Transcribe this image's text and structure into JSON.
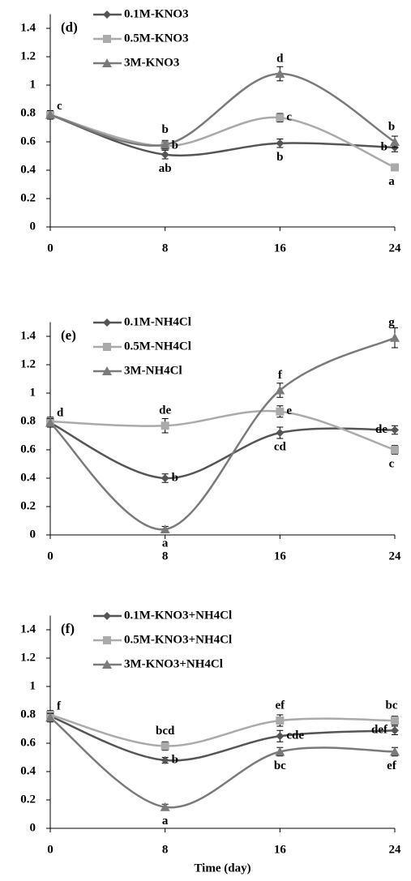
{
  "chart_data": [
    {
      "type": "line",
      "panel_label": "(d)",
      "smooth": true,
      "x": [
        0,
        8,
        16,
        24
      ],
      "xlim": [
        0,
        24
      ],
      "xticks": [
        0,
        8,
        16,
        24
      ],
      "ylim": [
        0,
        1.5
      ],
      "yticks": [
        0,
        0.2,
        0.4,
        0.6,
        0.8,
        1,
        1.2,
        1.4
      ],
      "series": [
        {
          "name": "0.1M-KNO3",
          "color": "#555555",
          "marker": "diamond",
          "values": [
            0.79,
            0.51,
            0.59,
            0.56
          ],
          "errors": [
            0.03,
            0.03,
            0.03,
            0.03
          ],
          "letters": [
            null,
            "ab",
            "b",
            "b"
          ]
        },
        {
          "name": "0.5M-KNO3",
          "color": "#aaaaaa",
          "marker": "square",
          "values": [
            0.79,
            0.57,
            0.77,
            0.42
          ],
          "errors": [
            0.03,
            0.03,
            0.03,
            0.02
          ],
          "letters": [
            null,
            "b",
            "c",
            "a"
          ]
        },
        {
          "name": "3M-KNO3",
          "color": "#7a7a7a",
          "marker": "triangle",
          "values": [
            0.79,
            0.58,
            1.08,
            0.6
          ],
          "errors": [
            0.03,
            0.03,
            0.05,
            0.04
          ],
          "letters": [
            "c",
            "b",
            "d",
            "b"
          ]
        }
      ]
    },
    {
      "type": "line",
      "panel_label": "(e)",
      "smooth": true,
      "x": [
        0,
        8,
        16,
        24
      ],
      "xlim": [
        0,
        24
      ],
      "xticks": [
        0,
        8,
        16,
        24
      ],
      "ylim": [
        0,
        1.5
      ],
      "yticks": [
        0,
        0.2,
        0.4,
        0.6,
        0.8,
        1,
        1.2,
        1.4
      ],
      "series": [
        {
          "name": "0.1M-NH4Cl",
          "color": "#555555",
          "marker": "diamond",
          "values": [
            0.79,
            0.4,
            0.72,
            0.74
          ],
          "errors": [
            0.03,
            0.03,
            0.04,
            0.03
          ],
          "letters": [
            null,
            "b",
            "cd",
            "de"
          ]
        },
        {
          "name": "0.5M-NH4Cl",
          "color": "#aaaaaa",
          "marker": "square",
          "values": [
            0.8,
            0.77,
            0.87,
            0.6
          ],
          "errors": [
            0.03,
            0.05,
            0.04,
            0.03
          ],
          "letters": [
            "d",
            "de",
            "e",
            "c"
          ]
        },
        {
          "name": "3M-NH4Cl",
          "color": "#7a7a7a",
          "marker": "triangle",
          "values": [
            0.79,
            0.04,
            1.02,
            1.39
          ],
          "errors": [
            0.03,
            0.02,
            0.05,
            0.07
          ],
          "letters": [
            null,
            "a",
            "f",
            "g"
          ]
        }
      ]
    },
    {
      "type": "line",
      "panel_label": "(f)",
      "smooth": true,
      "xlabel": "Time (day)",
      "x": [
        0,
        8,
        16,
        24
      ],
      "xlim": [
        0,
        24
      ],
      "xticks": [
        0,
        8,
        16,
        24
      ],
      "ylim": [
        0,
        1.5
      ],
      "yticks": [
        0,
        0.2,
        0.4,
        0.6,
        0.8,
        1,
        1.2,
        1.4
      ],
      "series": [
        {
          "name": "0.1M-KNO3+NH4Cl",
          "color": "#555555",
          "marker": "diamond",
          "values": [
            0.79,
            0.48,
            0.65,
            0.69
          ],
          "errors": [
            0.03,
            0.02,
            0.04,
            0.03
          ],
          "letters": [
            null,
            "b",
            "cde",
            "def"
          ]
        },
        {
          "name": "0.5M-KNO3+NH4Cl",
          "color": "#aaaaaa",
          "marker": "square",
          "values": [
            0.8,
            0.58,
            0.76,
            0.76
          ],
          "errors": [
            0.03,
            0.03,
            0.04,
            0.03
          ],
          "letters": [
            "f",
            "bcd",
            "ef",
            "bc"
          ]
        },
        {
          "name": "3M-KNO3+NH4Cl",
          "color": "#7a7a7a",
          "marker": "triangle",
          "values": [
            0.78,
            0.15,
            0.54,
            0.54
          ],
          "errors": [
            0.03,
            0.02,
            0.03,
            0.03
          ],
          "letters": [
            null,
            "a",
            "bc",
            "ef"
          ]
        }
      ]
    }
  ]
}
